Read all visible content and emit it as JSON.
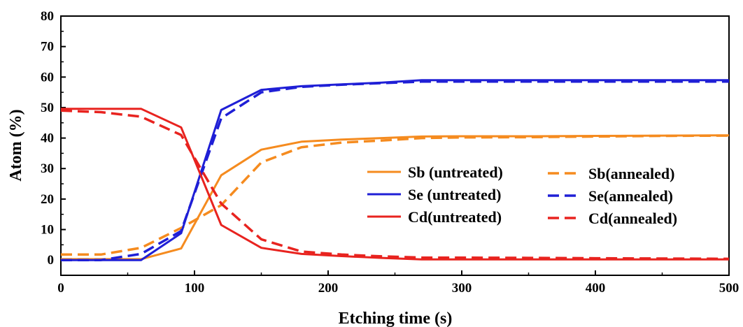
{
  "chart_data": {
    "type": "line",
    "title": "",
    "xlabel": "Etching time (s)",
    "ylabel": "Atom (%)",
    "xlim": [
      0,
      500
    ],
    "ylim": [
      -5,
      80
    ],
    "xticks": [
      0,
      100,
      200,
      300,
      400,
      500
    ],
    "yticks": [
      0,
      10,
      20,
      30,
      40,
      50,
      60,
      70,
      80
    ],
    "grid": false,
    "legend": "center-right",
    "series": [
      {
        "name": "Sb (untreated)",
        "color": "#f58b1f",
        "dash": "solid",
        "x": [
          0,
          60,
          90,
          120,
          150,
          180,
          210,
          240,
          270,
          300,
          350,
          400,
          450,
          500
        ],
        "y": [
          0.3,
          0.3,
          3.8,
          27.8,
          36.2,
          38.8,
          39.5,
          40.0,
          40.5,
          40.6,
          40.6,
          40.7,
          40.8,
          40.9
        ]
      },
      {
        "name": "Sb(annealed)",
        "color": "#f58b1f",
        "dash": "dashed",
        "x": [
          0,
          30,
          60,
          90,
          120,
          150,
          180,
          210,
          240,
          270,
          300,
          350,
          400,
          450,
          500
        ],
        "y": [
          1.8,
          1.8,
          4.0,
          10.5,
          18.0,
          32.0,
          37.0,
          38.5,
          39.2,
          40.0,
          40.2,
          40.3,
          40.5,
          40.7,
          40.8
        ]
      },
      {
        "name": "Se (untreated)",
        "color": "#1f1fd6",
        "dash": "solid",
        "x": [
          0,
          60,
          90,
          120,
          150,
          180,
          210,
          240,
          270,
          300,
          350,
          400,
          450,
          500
        ],
        "y": [
          0,
          0,
          8.8,
          49.2,
          55.8,
          57.0,
          57.6,
          58.2,
          59.0,
          59.0,
          59.0,
          59.0,
          59.0,
          59.0
        ]
      },
      {
        "name": "Se(annealed)",
        "color": "#1f1fd6",
        "dash": "dashed",
        "x": [
          0,
          30,
          60,
          90,
          120,
          150,
          180,
          210,
          240,
          270,
          300,
          350,
          400,
          450,
          500
        ],
        "y": [
          0,
          0,
          2.0,
          9.5,
          46.5,
          55.0,
          56.8,
          57.5,
          58.0,
          58.5,
          58.5,
          58.5,
          58.5,
          58.5,
          58.5
        ]
      },
      {
        "name": "Cd(untreated)",
        "color": "#e8231f",
        "dash": "solid",
        "x": [
          0,
          60,
          90,
          120,
          150,
          180,
          210,
          240,
          270,
          300,
          350,
          400,
          450,
          500
        ],
        "y": [
          49.6,
          49.6,
          43.5,
          11.5,
          4.0,
          2.0,
          1.3,
          0.7,
          0.2,
          0.2,
          0.2,
          0.2,
          0.2,
          0.2
        ]
      },
      {
        "name": "Cd(annealed)",
        "color": "#e8231f",
        "dash": "dashed",
        "x": [
          0,
          30,
          60,
          90,
          120,
          150,
          180,
          210,
          240,
          270,
          300,
          350,
          400,
          450,
          500
        ],
        "y": [
          49.0,
          48.5,
          47.0,
          41.0,
          18.5,
          6.8,
          2.8,
          1.8,
          1.2,
          0.8,
          0.8,
          0.7,
          0.6,
          0.5,
          0.4
        ]
      }
    ]
  }
}
